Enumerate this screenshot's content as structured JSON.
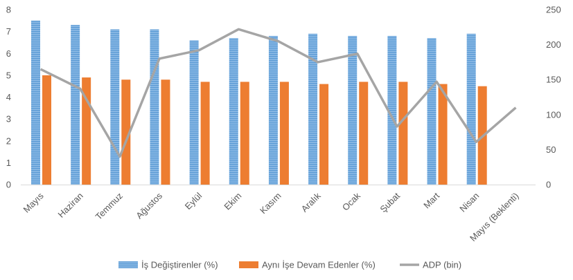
{
  "chart_data": {
    "type": "bar",
    "categories": [
      "Mayıs",
      "Haziran",
      "Temmuz",
      "Ağustos",
      "Eylül",
      "Ekim",
      "Kasım",
      "Aralık",
      "Ocak",
      "Şubat",
      "Mart",
      "Nisan",
      "Mayıs (Beklenti)"
    ],
    "series": [
      {
        "name": "İş Değiştirenler (%)",
        "type": "bar",
        "axis": "left",
        "color": "#5B9BD5",
        "values": [
          7.5,
          7.3,
          7.1,
          7.1,
          6.6,
          6.7,
          6.8,
          6.9,
          6.8,
          6.8,
          6.7,
          6.9,
          null
        ]
      },
      {
        "name": "Aynı İşe Devam Edenler (%)",
        "type": "bar",
        "axis": "left",
        "color": "#ED7D31",
        "values": [
          5.0,
          4.9,
          4.8,
          4.8,
          4.7,
          4.7,
          4.7,
          4.6,
          4.7,
          4.7,
          4.6,
          4.5,
          null
        ]
      },
      {
        "name": "ADP (bin)",
        "type": "line",
        "axis": "right",
        "color": "#A5A5A5",
        "values": [
          165,
          137,
          40,
          180,
          192,
          222,
          205,
          175,
          187,
          83,
          147,
          61,
          110
        ]
      }
    ],
    "y_left": {
      "min": 0,
      "max": 8,
      "step": 1,
      "ticks": [
        "0",
        "1",
        "2",
        "3",
        "4",
        "5",
        "6",
        "7",
        "8"
      ]
    },
    "y_right": {
      "min": 0,
      "max": 250,
      "step": 50,
      "ticks": [
        "0",
        "50",
        "100",
        "150",
        "200",
        "250"
      ]
    },
    "grid": false,
    "legend_position": "bottom"
  }
}
